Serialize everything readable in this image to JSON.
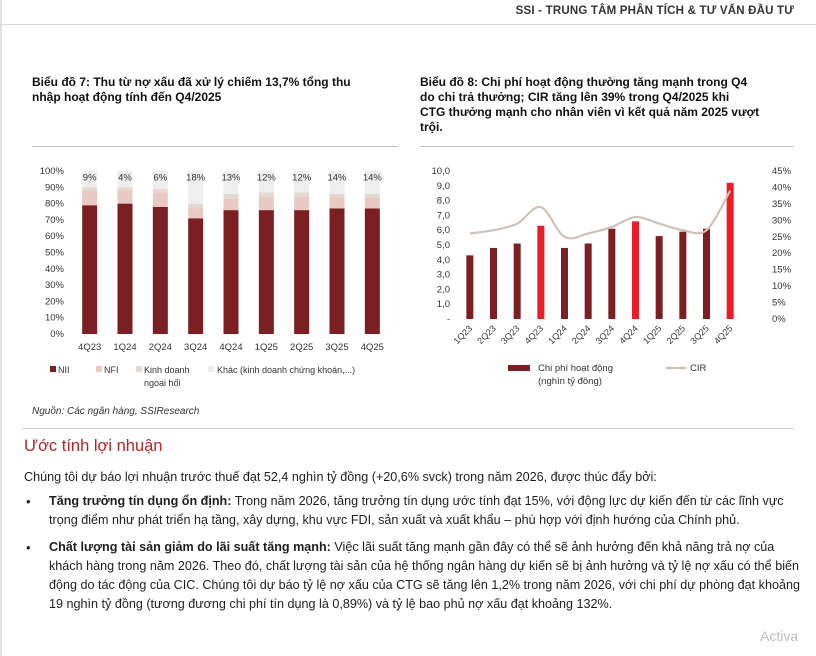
{
  "header": {
    "title": "SSI - TRUNG TÂM PHÂN TÍCH & TƯ VẤN ĐẦU TƯ"
  },
  "chart7": {
    "title_line1": "Biểu đồ 7: Thu từ nợ xấu đã xử lý chiếm 13,7% tổng thu",
    "title_line2": "nhập hoạt động tính đến Q4/2025"
  },
  "chart8": {
    "title_line1": "Biểu đồ 8: Chi phí hoạt động thường tăng mạnh trong Q4",
    "title_line2": "do chi trả thưởng; CIR tăng lên 39% trong Q4/2025 khi",
    "title_line3": "CTG thưởng mạnh cho nhân viên vì kết quả năm 2025 vượt",
    "title_line4": "trội."
  },
  "chart_data": [
    {
      "type": "bar",
      "stacked": true,
      "categories": [
        "4Q23",
        "1Q24",
        "2Q24",
        "3Q24",
        "4Q24",
        "1Q25",
        "2Q25",
        "3Q25",
        "4Q25"
      ],
      "series": [
        {
          "name": "NII",
          "values": [
            79,
            80,
            78,
            71,
            76,
            76,
            76,
            77,
            77
          ],
          "color": "#7b1f22"
        },
        {
          "name": "NFI",
          "values": [
            9,
            8,
            9,
            6,
            7,
            8,
            8,
            7,
            7
          ],
          "color": "#e8c9c3"
        },
        {
          "name": "Kinh doanh ngoại hối",
          "values": [
            2,
            2,
            2,
            3,
            3,
            3,
            3,
            2,
            2
          ],
          "color": "#e3d8d2"
        },
        {
          "name": "Khác (kinh doanh chứng khoán,...)",
          "values": [
            10,
            10,
            11,
            20,
            14,
            13,
            13,
            14,
            14
          ],
          "color": "#eeeeee"
        }
      ],
      "data_labels": [
        "9%",
        "4%",
        "6%",
        "18%",
        "13%",
        "12%",
        "12%",
        "14%",
        "14%"
      ],
      "yticks": [
        "0%",
        "10%",
        "20%",
        "30%",
        "40%",
        "50%",
        "60%",
        "70%",
        "80%",
        "90%",
        "100%"
      ],
      "ylim": [
        0,
        100
      ],
      "legend": {
        "nii": "NII",
        "nfi": "NFI",
        "fx_line1": "Kinh doanh",
        "fx_line2": "ngoại hối",
        "other": "Khác (kinh doanh chứng khoán,...)"
      },
      "legend_position": "bottom"
    },
    {
      "type": "bar+line",
      "categories": [
        "1Q23",
        "2Q23",
        "3Q23",
        "4Q23",
        "1Q24",
        "2Q24",
        "3Q24",
        "4Q24",
        "1Q25",
        "2Q25",
        "3Q25",
        "4Q25"
      ],
      "bars": {
        "name_line1": "Chi phí hoạt động",
        "name_line2": "(nghìn tỷ đồng)",
        "values": [
          4.3,
          4.8,
          5.1,
          6.3,
          4.8,
          5.1,
          6.1,
          6.6,
          5.6,
          5.9,
          6.1,
          9.2
        ],
        "colors": [
          "#7b1f22",
          "#7b1f22",
          "#7b1f22",
          "#ee1c25",
          "#7b1f22",
          "#7b1f22",
          "#7b1f22",
          "#ee1c25",
          "#7b1f22",
          "#7b1f22",
          "#7b1f22",
          "#ee1c25"
        ]
      },
      "line": {
        "name": "CIR",
        "values": [
          26,
          27,
          29,
          34,
          25,
          26,
          28,
          31,
          29,
          27,
          27,
          39
        ],
        "color": "#cfc1b6"
      },
      "yticks_left": [
        "-",
        "1,0",
        "2,0",
        "3,0",
        "4,0",
        "5,0",
        "6,0",
        "7,0",
        "8,0",
        "9,0",
        "10,0"
      ],
      "yticks_right": [
        "0%",
        "5%",
        "10%",
        "15%",
        "20%",
        "25%",
        "30%",
        "35%",
        "40%",
        "45%"
      ],
      "ylim_left": [
        0,
        10
      ],
      "ylim_right": [
        0,
        45
      ],
      "legend_position": "bottom"
    }
  ],
  "source": "Nguồn: Các ngân hàng, SSIResearch",
  "section": {
    "title": "Ước tính lợi nhuận",
    "intro": "Chúng tôi dự báo lợi nhuận trước thuế đạt 52,4 nghìn tỷ đồng (+20,6% svck) trong năm 2026, được thúc đẩy bởi:",
    "bullet_char": "•",
    "bullets": [
      {
        "bold": "Tăng trưởng tín dụng ổn định:",
        "text": " Trong năm 2026, tăng trưởng tín dụng ước tính đạt 15%, với động lực dự kiến đến từ các lĩnh vực trọng điểm như phát triển hạ tầng, xây dựng, khu vực FDI, sản xuất và xuất khẩu – phù hợp với định hướng của Chính phủ."
      },
      {
        "bold": "Chất lượng tài sản giảm do lãi suất tăng mạnh:",
        "text": " Việc lãi suất tăng mạnh gần đây có thể sẽ ảnh hưởng đến khả năng trả nợ của khách hàng trong năm 2026. Theo đó, chất lượng tài sản của hệ thống ngân hàng dự kiến sẽ bị ảnh hưởng và tỷ lệ nợ xấu có thể biến động do tác động của CIC. Chúng tôi dự báo tỷ lệ nợ xấu của CTG sẽ tăng lên 1,2% trong năm 2026, với chi phí dự phòng đạt khoảng 19 nghìn tỷ đồng (tương đương chi phí tín dụng là 0,89%) và tỷ lệ bao phủ nợ xấu đạt khoảng 132%."
      }
    ]
  },
  "watermark": "Activa"
}
